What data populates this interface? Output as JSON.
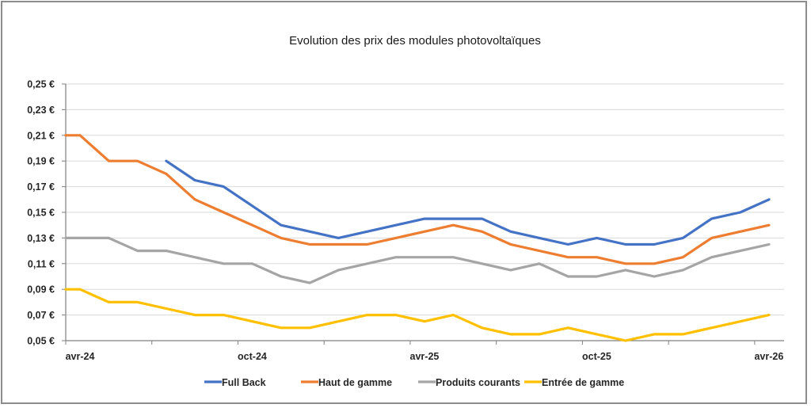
{
  "chart_data": {
    "type": "line",
    "title": "Evolution des prix des modules photovoltaïques",
    "xlabel": "",
    "ylabel": "",
    "y_unit": "€",
    "ylim": [
      0.05,
      0.25
    ],
    "y_ticks": [
      "0,05 €",
      "0,07 €",
      "0,09 €",
      "0,11 €",
      "0,13 €",
      "0,15 €",
      "0,17 €",
      "0,19 €",
      "0,21 €",
      "0,23 €",
      "0,25 €"
    ],
    "y_tick_values": [
      0.05,
      0.07,
      0.09,
      0.11,
      0.13,
      0.15,
      0.17,
      0.19,
      0.21,
      0.23,
      0.25
    ],
    "x_unit": "months since avr-24",
    "xlim": [
      0,
      24.5
    ],
    "x_tick_labels": [
      "avr-24",
      "oct-24",
      "avr-25",
      "oct-25",
      "avr-26"
    ],
    "x_tick_label_values": [
      0,
      6,
      12,
      18,
      24
    ],
    "x_minor_ticks": [
      0,
      3,
      6,
      9,
      12,
      15,
      18,
      21,
      24
    ],
    "grid": true,
    "legend_position": "bottom",
    "x": [
      0,
      0.5,
      1.5,
      2.5,
      3.5,
      4.5,
      5.5,
      6.5,
      7.5,
      8.5,
      9.5,
      10.5,
      11.5,
      12.5,
      13.5,
      14.5,
      15.5,
      16.5,
      17.5,
      18.5,
      19.5,
      20.5,
      21.5,
      22.5,
      23.5,
      24.5
    ],
    "series": [
      {
        "name": "Full Back",
        "color": "#4472c4",
        "values": [
          null,
          null,
          null,
          null,
          0.19,
          0.175,
          0.17,
          0.155,
          0.14,
          0.135,
          0.13,
          0.135,
          0.14,
          0.145,
          0.145,
          0.145,
          0.135,
          0.13,
          0.125,
          0.13,
          0.125,
          0.125,
          0.13,
          0.145,
          0.15,
          0.16
        ]
      },
      {
        "name": "Haut de gamme",
        "color": "#ed7d31",
        "values": [
          0.21,
          0.21,
          0.19,
          0.19,
          0.18,
          0.16,
          0.15,
          0.14,
          0.13,
          0.125,
          0.125,
          0.125,
          0.13,
          0.135,
          0.14,
          0.135,
          0.125,
          0.12,
          0.115,
          0.115,
          0.11,
          0.11,
          0.115,
          0.13,
          0.135,
          0.14
        ]
      },
      {
        "name": "Produits courants",
        "color": "#a5a5a5",
        "values": [
          0.13,
          0.13,
          0.13,
          0.12,
          0.12,
          0.115,
          0.11,
          0.11,
          0.1,
          0.095,
          0.105,
          0.11,
          0.115,
          0.115,
          0.115,
          0.11,
          0.105,
          0.11,
          0.1,
          0.1,
          0.105,
          0.1,
          0.105,
          0.115,
          0.12,
          0.125
        ]
      },
      {
        "name": "Entrée de gamme",
        "color": "#ffc000",
        "values": [
          0.09,
          0.09,
          0.08,
          0.08,
          0.075,
          0.07,
          0.07,
          0.065,
          0.06,
          0.06,
          0.065,
          0.07,
          0.07,
          0.065,
          0.07,
          0.06,
          0.055,
          0.055,
          0.06,
          0.055,
          0.05,
          0.055,
          0.055,
          0.06,
          0.065,
          0.07
        ]
      }
    ]
  }
}
